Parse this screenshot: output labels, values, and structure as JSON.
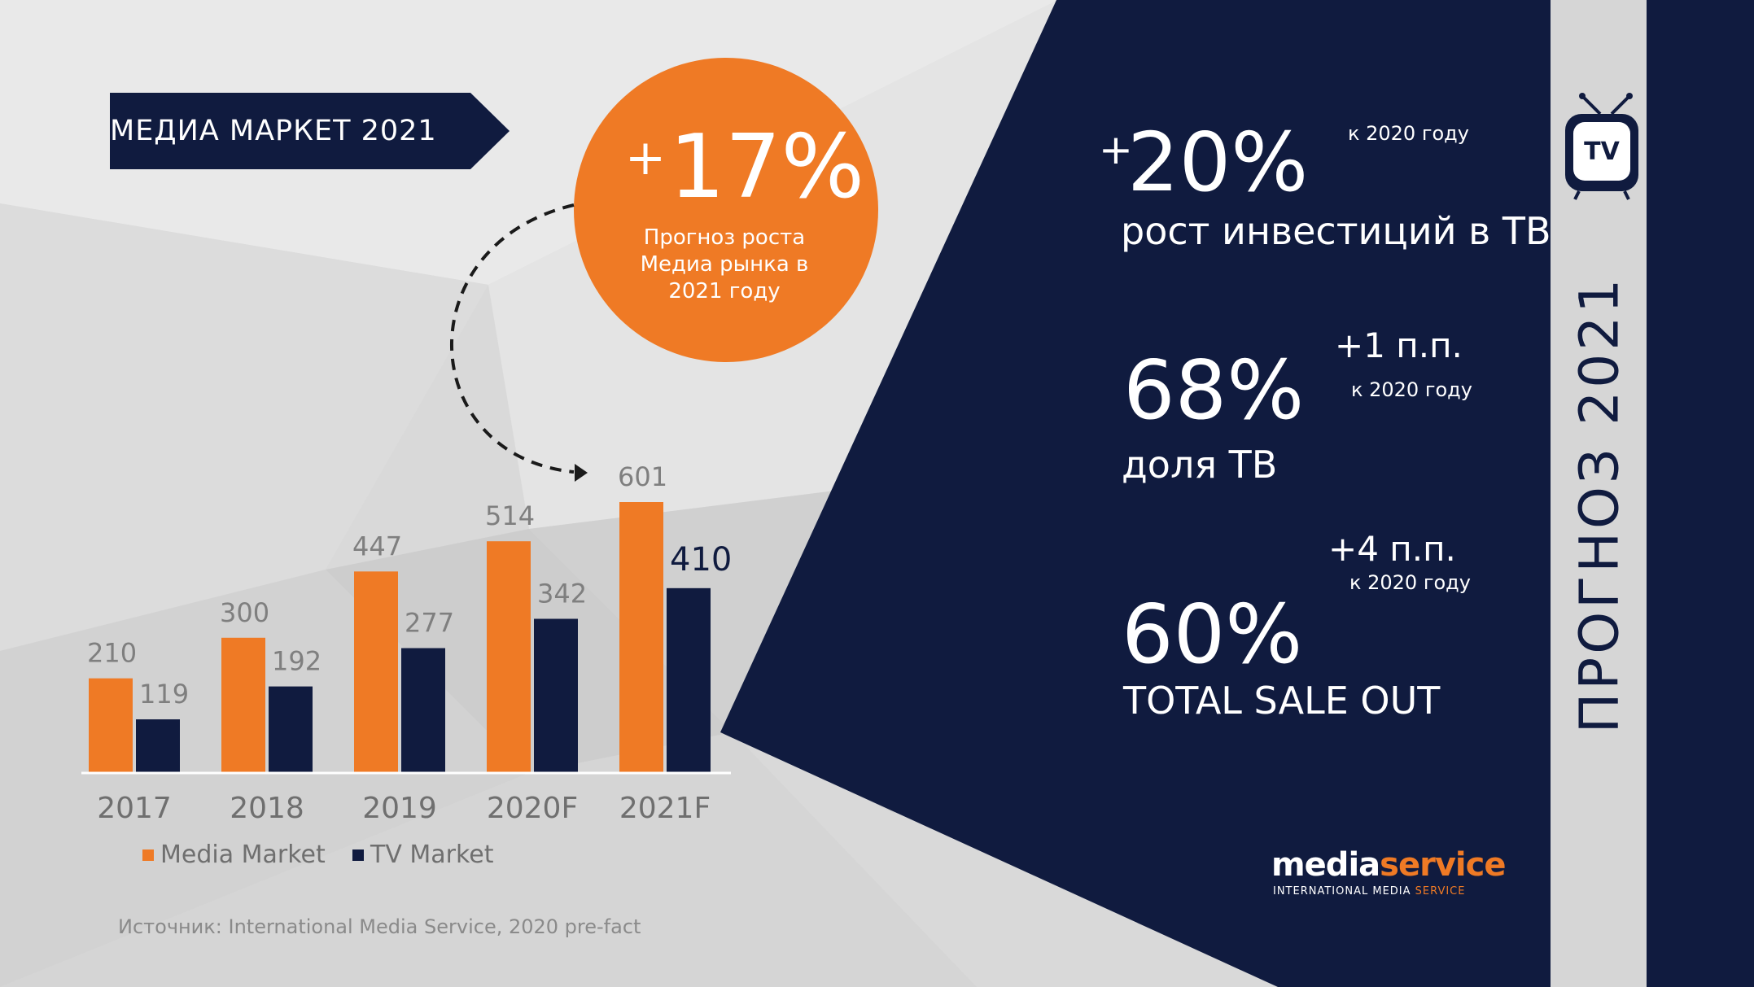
{
  "colors": {
    "navy": "#101b3f",
    "orange": "#ef7a25",
    "light_bg": "#d9d9d9",
    "strip": "#d6d6d6",
    "label_gray": "#7f7f7f"
  },
  "banner": {
    "title": "МЕДИА МАРКЕТ 2021"
  },
  "circle": {
    "plus": "+",
    "value": "17%",
    "caption_line1": "Прогноз роста",
    "caption_line2": "Медиа рынка в",
    "caption_line3": "2021 году"
  },
  "stats": {
    "tv_invest": {
      "plus": "+",
      "value": "20%",
      "note": "к 2020 году",
      "label": "рост инвестиций в ТВ"
    },
    "tv_share": {
      "value": "68%",
      "delta": "+1 п.п.",
      "note": "к 2020 году",
      "label": "доля ТВ"
    },
    "sale_out": {
      "value": "60%",
      "delta": "+4 п.п.",
      "note": "к 2020 году",
      "label": "TOTAL SALE OUT"
    }
  },
  "side_title": "ПРОГНОЗ 2021",
  "tv_icon": {
    "name": "tv-icon",
    "text": "TV"
  },
  "source": "Источник: International Media Service, 2020 pre-fact",
  "logo": {
    "word1": "media",
    "word2": "service",
    "tagline1": "INTERNATIONAL MEDIA ",
    "tagline2": "SERVICE"
  },
  "chart_data": {
    "type": "bar",
    "categories": [
      "2017",
      "2018",
      "2019",
      "2020F",
      "2021F"
    ],
    "series": [
      {
        "name": "Media Market",
        "color": "#ef7a25",
        "values": [
          210,
          300,
          447,
          514,
          601
        ]
      },
      {
        "name": "TV Market",
        "color": "#101b3f",
        "values": [
          119,
          192,
          277,
          342,
          410
        ]
      }
    ],
    "ylim": [
      0,
      601
    ],
    "grid": false,
    "legend": "bottom",
    "highlight_label": "410"
  }
}
